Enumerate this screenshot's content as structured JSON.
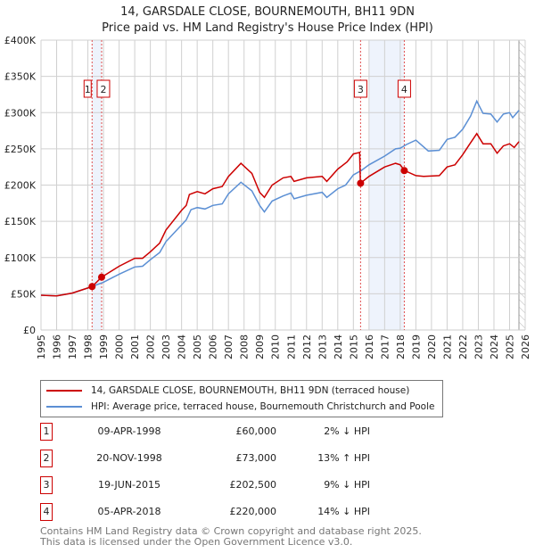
{
  "chart_data": {
    "type": "line",
    "title": "14, GARSDALE CLOSE, BOURNEMOUTH, BH11 9DN",
    "subtitle": "Price paid vs. HM Land Registry's House Price Index (HPI)",
    "xlim": [
      1995,
      2026
    ],
    "ylim": [
      0,
      400000
    ],
    "x_ticks": [
      "1995",
      "1996",
      "1997",
      "1998",
      "1999",
      "2000",
      "2001",
      "2002",
      "2003",
      "2004",
      "2005",
      "2006",
      "2007",
      "2008",
      "2009",
      "2010",
      "2011",
      "2012",
      "2013",
      "2014",
      "2015",
      "2016",
      "2017",
      "2018",
      "2019",
      "2020",
      "2021",
      "2022",
      "2023",
      "2024",
      "2025",
      "2026"
    ],
    "y_ticks": [
      {
        "v": 0,
        "label": "£0"
      },
      {
        "v": 50000,
        "label": "£50K"
      },
      {
        "v": 100000,
        "label": "£100K"
      },
      {
        "v": 150000,
        "label": "£150K"
      },
      {
        "v": 200000,
        "label": "£200K"
      },
      {
        "v": 250000,
        "label": "£250K"
      },
      {
        "v": 300000,
        "label": "£300K"
      },
      {
        "v": 350000,
        "label": "£350K"
      },
      {
        "v": 400000,
        "label": "£400K"
      }
    ],
    "grid": true,
    "forecast_hatch_from": 2025.6,
    "series": [
      {
        "name": "14, GARSDALE CLOSE, BOURNEMOUTH, BH11 9DN (terraced house)",
        "color": "#cc0000",
        "points": [
          [
            1995,
            48000
          ],
          [
            1996,
            47000
          ],
          [
            1997,
            51000
          ],
          [
            1998,
            58000
          ],
          [
            1998.27,
            60000
          ],
          [
            1998.88,
            73000
          ],
          [
            2000,
            88000
          ],
          [
            2001,
            99000
          ],
          [
            2001.5,
            99000
          ],
          [
            2002,
            108000
          ],
          [
            2002.6,
            120000
          ],
          [
            2003,
            138000
          ],
          [
            2004,
            165000
          ],
          [
            2004.3,
            172000
          ],
          [
            2004.5,
            187000
          ],
          [
            2005,
            191000
          ],
          [
            2005.5,
            188000
          ],
          [
            2006,
            195000
          ],
          [
            2006.6,
            198000
          ],
          [
            2007,
            212000
          ],
          [
            2007.8,
            230000
          ],
          [
            2008.5,
            216000
          ],
          [
            2009,
            190000
          ],
          [
            2009.3,
            183000
          ],
          [
            2009.8,
            200000
          ],
          [
            2010.5,
            210000
          ],
          [
            2011,
            212000
          ],
          [
            2011.2,
            205000
          ],
          [
            2012,
            210000
          ],
          [
            2013,
            212000
          ],
          [
            2013.3,
            205000
          ],
          [
            2014,
            222000
          ],
          [
            2014.6,
            232000
          ],
          [
            2015,
            243000
          ],
          [
            2015.4,
            245000
          ],
          [
            2015.45,
            202500
          ],
          [
            2016,
            212000
          ],
          [
            2017,
            225000
          ],
          [
            2017.7,
            230000
          ],
          [
            2018,
            228000
          ],
          [
            2018.27,
            220000
          ],
          [
            2019,
            213000
          ],
          [
            2019.5,
            212000
          ],
          [
            2020.5,
            213000
          ],
          [
            2021,
            225000
          ],
          [
            2021.5,
            228000
          ],
          [
            2022,
            242000
          ],
          [
            2022.4,
            255000
          ],
          [
            2022.9,
            271000
          ],
          [
            2023.3,
            257000
          ],
          [
            2023.8,
            257000
          ],
          [
            2024.2,
            244000
          ],
          [
            2024.6,
            254000
          ],
          [
            2025,
            257000
          ],
          [
            2025.3,
            252000
          ],
          [
            2025.6,
            260000
          ]
        ]
      },
      {
        "name": "HPI: Average price, terraced house, Bournemouth Christchurch and Poole",
        "color": "#5b8fd4",
        "points": [
          [
            1995,
            48000
          ],
          [
            1996,
            47000
          ],
          [
            1997,
            51000
          ],
          [
            1998,
            58000
          ],
          [
            1999,
            66000
          ],
          [
            2000,
            77000
          ],
          [
            2001,
            87000
          ],
          [
            2001.5,
            88000
          ],
          [
            2002,
            97000
          ],
          [
            2002.6,
            107000
          ],
          [
            2003,
            122000
          ],
          [
            2004,
            145000
          ],
          [
            2004.3,
            152000
          ],
          [
            2004.6,
            166000
          ],
          [
            2005,
            169000
          ],
          [
            2005.5,
            167000
          ],
          [
            2006,
            172000
          ],
          [
            2006.6,
            174000
          ],
          [
            2007,
            188000
          ],
          [
            2007.8,
            204000
          ],
          [
            2008.5,
            192000
          ],
          [
            2009,
            172000
          ],
          [
            2009.3,
            163000
          ],
          [
            2009.8,
            178000
          ],
          [
            2010.5,
            185000
          ],
          [
            2011,
            189000
          ],
          [
            2011.2,
            181000
          ],
          [
            2012,
            186000
          ],
          [
            2013,
            190000
          ],
          [
            2013.3,
            183000
          ],
          [
            2014,
            195000
          ],
          [
            2014.5,
            200000
          ],
          [
            2015,
            214000
          ],
          [
            2015.5,
            220000
          ],
          [
            2016,
            228000
          ],
          [
            2017,
            240000
          ],
          [
            2017.7,
            250000
          ],
          [
            2018,
            251000
          ],
          [
            2018.4,
            256000
          ],
          [
            2019,
            262000
          ],
          [
            2019.8,
            247000
          ],
          [
            2020.5,
            248000
          ],
          [
            2021,
            263000
          ],
          [
            2021.5,
            266000
          ],
          [
            2022,
            277000
          ],
          [
            2022.5,
            295000
          ],
          [
            2022.9,
            316000
          ],
          [
            2023.3,
            299000
          ],
          [
            2023.8,
            298000
          ],
          [
            2024.2,
            287000
          ],
          [
            2024.6,
            298000
          ],
          [
            2025,
            300000
          ],
          [
            2025.2,
            293000
          ],
          [
            2025.6,
            303000
          ]
        ]
      }
    ],
    "sales": [
      {
        "num": "1",
        "x": 1998.27,
        "price": 60000
      },
      {
        "num": "2",
        "x": 1998.88,
        "price": 73000
      },
      {
        "num": "3",
        "x": 2015.46,
        "price": 202500
      },
      {
        "num": "4",
        "x": 2018.26,
        "price": 220000
      }
    ],
    "shaded_ranges": [
      [
        1998.27,
        1998.88
      ],
      [
        2016.0,
        2018.26
      ]
    ]
  },
  "legend": {
    "red_label": "14, GARSDALE CLOSE, BOURNEMOUTH, BH11 9DN (terraced house)",
    "blue_label": "HPI: Average price, terraced house, Bournemouth Christchurch and Poole"
  },
  "sales_table": [
    {
      "num": "1",
      "date": "09-APR-1998",
      "price": "£60,000",
      "hpi": "2% ↓ HPI"
    },
    {
      "num": "2",
      "date": "20-NOV-1998",
      "price": "£73,000",
      "hpi": "13% ↑ HPI"
    },
    {
      "num": "3",
      "date": "19-JUN-2015",
      "price": "£202,500",
      "hpi": "9% ↓ HPI"
    },
    {
      "num": "4",
      "date": "05-APR-2018",
      "price": "£220,000",
      "hpi": "14% ↓ HPI"
    }
  ],
  "footer": {
    "line1": "Contains HM Land Registry data © Crown copyright and database right 2025.",
    "line2": "This data is licensed under the Open Government Licence v3.0."
  }
}
